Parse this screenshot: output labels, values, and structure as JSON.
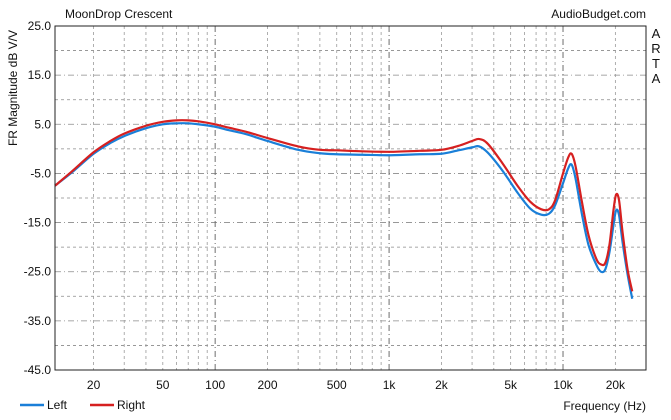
{
  "chart_data": {
    "type": "line",
    "title": "MoonDrop Crescent",
    "source_label": "AudioBudget.com",
    "side_label": "ARTA",
    "xlabel": "Frequency (Hz)",
    "ylabel": "FR Magnitude dB V/V",
    "x_scale": "log",
    "xlim": [
      12,
      30000
    ],
    "ylim": [
      -45,
      25
    ],
    "grid": true,
    "legend_position": "bottom-left",
    "y_ticks": [
      {
        "value": 25,
        "label": "25.0"
      },
      {
        "value": 15,
        "label": "15.0"
      },
      {
        "value": 5,
        "label": "5.0"
      },
      {
        "value": -5,
        "label": "-5.0"
      },
      {
        "value": -15,
        "label": "-15.0"
      },
      {
        "value": -25,
        "label": "-25.0"
      },
      {
        "value": -35,
        "label": "-35.0"
      },
      {
        "value": -45,
        "label": "-45.0"
      }
    ],
    "x_ticks": [
      {
        "value": 20,
        "label": "20"
      },
      {
        "value": 50,
        "label": "50"
      },
      {
        "value": 100,
        "label": "100"
      },
      {
        "value": 200,
        "label": "200"
      },
      {
        "value": 500,
        "label": "500"
      },
      {
        "value": 1000,
        "label": "1k"
      },
      {
        "value": 2000,
        "label": "2k"
      },
      {
        "value": 5000,
        "label": "5k"
      },
      {
        "value": 10000,
        "label": "10k"
      },
      {
        "value": 20000,
        "label": "20k"
      }
    ],
    "series": [
      {
        "name": "Left",
        "color": "#1a7fd8",
        "points": [
          [
            12,
            -7.5
          ],
          [
            15,
            -4.8
          ],
          [
            20,
            -1.0
          ],
          [
            25,
            1.2
          ],
          [
            30,
            2.6
          ],
          [
            40,
            4.2
          ],
          [
            50,
            5.0
          ],
          [
            60,
            5.2
          ],
          [
            70,
            5.2
          ],
          [
            80,
            5.0
          ],
          [
            100,
            4.5
          ],
          [
            120,
            3.8
          ],
          [
            150,
            3.0
          ],
          [
            200,
            1.6
          ],
          [
            300,
            -0.2
          ],
          [
            400,
            -0.9
          ],
          [
            500,
            -1.1
          ],
          [
            700,
            -1.2
          ],
          [
            1000,
            -1.3
          ],
          [
            1500,
            -1.1
          ],
          [
            2000,
            -1.0
          ],
          [
            2500,
            -0.3
          ],
          [
            3000,
            0.3
          ],
          [
            3300,
            0.5
          ],
          [
            3700,
            -0.8
          ],
          [
            4500,
            -4.5
          ],
          [
            5500,
            -9.0
          ],
          [
            6500,
            -12.2
          ],
          [
            7500,
            -13.4
          ],
          [
            8300,
            -13.2
          ],
          [
            9000,
            -11.5
          ],
          [
            10000,
            -7.0
          ],
          [
            10700,
            -4.0
          ],
          [
            11200,
            -3.2
          ],
          [
            11800,
            -6.0
          ],
          [
            12800,
            -13.0
          ],
          [
            14000,
            -19.5
          ],
          [
            15500,
            -23.5
          ],
          [
            16500,
            -25.0
          ],
          [
            17500,
            -24.5
          ],
          [
            18500,
            -21.0
          ],
          [
            19500,
            -15.5
          ],
          [
            20200,
            -12.5
          ],
          [
            21000,
            -13.5
          ],
          [
            22000,
            -19.0
          ],
          [
            23500,
            -25.5
          ],
          [
            25000,
            -30.5
          ]
        ]
      },
      {
        "name": "Right",
        "color": "#d62020",
        "points": [
          [
            12,
            -7.5
          ],
          [
            15,
            -4.6
          ],
          [
            20,
            -0.7
          ],
          [
            25,
            1.6
          ],
          [
            30,
            3.1
          ],
          [
            40,
            4.7
          ],
          [
            50,
            5.5
          ],
          [
            60,
            5.8
          ],
          [
            70,
            5.8
          ],
          [
            80,
            5.6
          ],
          [
            100,
            5.0
          ],
          [
            120,
            4.3
          ],
          [
            150,
            3.5
          ],
          [
            200,
            2.2
          ],
          [
            300,
            0.5
          ],
          [
            400,
            -0.2
          ],
          [
            500,
            -0.3
          ],
          [
            700,
            -0.5
          ],
          [
            1000,
            -0.6
          ],
          [
            1500,
            -0.4
          ],
          [
            2000,
            -0.2
          ],
          [
            2500,
            0.6
          ],
          [
            3000,
            1.6
          ],
          [
            3300,
            2.0
          ],
          [
            3700,
            1.0
          ],
          [
            4500,
            -3.0
          ],
          [
            5500,
            -7.6
          ],
          [
            6500,
            -10.8
          ],
          [
            7500,
            -12.3
          ],
          [
            8300,
            -12.3
          ],
          [
            9000,
            -10.5
          ],
          [
            10000,
            -5.0
          ],
          [
            10700,
            -1.8
          ],
          [
            11200,
            -1.0
          ],
          [
            11800,
            -3.5
          ],
          [
            12800,
            -10.5
          ],
          [
            14000,
            -17.5
          ],
          [
            15500,
            -22.3
          ],
          [
            16500,
            -23.5
          ],
          [
            17500,
            -23.2
          ],
          [
            18500,
            -19.5
          ],
          [
            19500,
            -12.5
          ],
          [
            20200,
            -9.3
          ],
          [
            21000,
            -10.5
          ],
          [
            22000,
            -17.0
          ],
          [
            23500,
            -24.5
          ],
          [
            25000,
            -29.0
          ]
        ]
      }
    ]
  }
}
